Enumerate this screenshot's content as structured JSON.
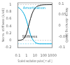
{
  "chart_data": {
    "type": "line",
    "xlabel": "Scaled excitation pulse [ τ ω0 ]",
    "ylabel": "Norm. stiffness (k/k0)",
    "y2label": "Norm. damping (d/k0)",
    "log": "x",
    "grid": false,
    "x": [
      0.1,
      0.13,
      0.18,
      0.25,
      0.35,
      0.5,
      0.7,
      1.0,
      1.4,
      2.0,
      3.0,
      4.5,
      6.5,
      10.0,
      15.0,
      22.0,
      32.0,
      50.0,
      75.0,
      100.0,
      150.0,
      220.0,
      320.0,
      500.0,
      750.0,
      1000.0
    ],
    "series": [
      {
        "name": "Stiffness",
        "color": "#1a1a1a",
        "axis": "y",
        "values": [
          0.001,
          0.002,
          0.004,
          0.01,
          0.022,
          0.05,
          0.1,
          0.185,
          0.31,
          0.45,
          0.61,
          0.74,
          0.83,
          0.9,
          0.942,
          0.962,
          0.976,
          0.986,
          0.992,
          0.995,
          0.997,
          0.998,
          0.999,
          0.9995,
          0.9998,
          1.0
        ]
      },
      {
        "name": "Amortization",
        "color": "#00aadd",
        "axis": "y2",
        "values": [
          0.085,
          0.082,
          0.078,
          0.072,
          0.065,
          0.055,
          0.043,
          0.025,
          0.005,
          -0.018,
          -0.042,
          -0.058,
          -0.068,
          -0.076,
          -0.08,
          -0.082,
          -0.083,
          -0.083,
          -0.083,
          -0.083,
          -0.083,
          -0.083,
          -0.083,
          -0.083,
          -0.083,
          -0.083
        ]
      }
    ],
    "xlim": [
      0.1,
      1000
    ],
    "xticks": [
      0.1,
      1,
      10,
      100,
      1000
    ],
    "ylim": [
      -0.2,
      1.05
    ],
    "yticks": [
      -0.2,
      0,
      0.2,
      0.4,
      0.6,
      0.8,
      1
    ],
    "y2lim": [
      -0.1,
      0.105
    ],
    "y2ticks": [
      -0.1,
      -0.05,
      0,
      0.05,
      0.1
    ],
    "reference_lines": [
      {
        "value": 0.0,
        "axis": "y",
        "color": "#888888",
        "line_style": "dashed"
      },
      {
        "value": 1.0,
        "axis": "y",
        "color": "#888888",
        "line_style": "dashed"
      },
      {
        "value": -0.083,
        "axis": "y2",
        "color": "#00aadd",
        "line_style": "dashed"
      }
    ],
    "annotations": [
      {
        "text": "Amortization",
        "color": "#00aadd"
      },
      {
        "text": "Stiffness",
        "color": "#1a1a1a"
      }
    ]
  }
}
